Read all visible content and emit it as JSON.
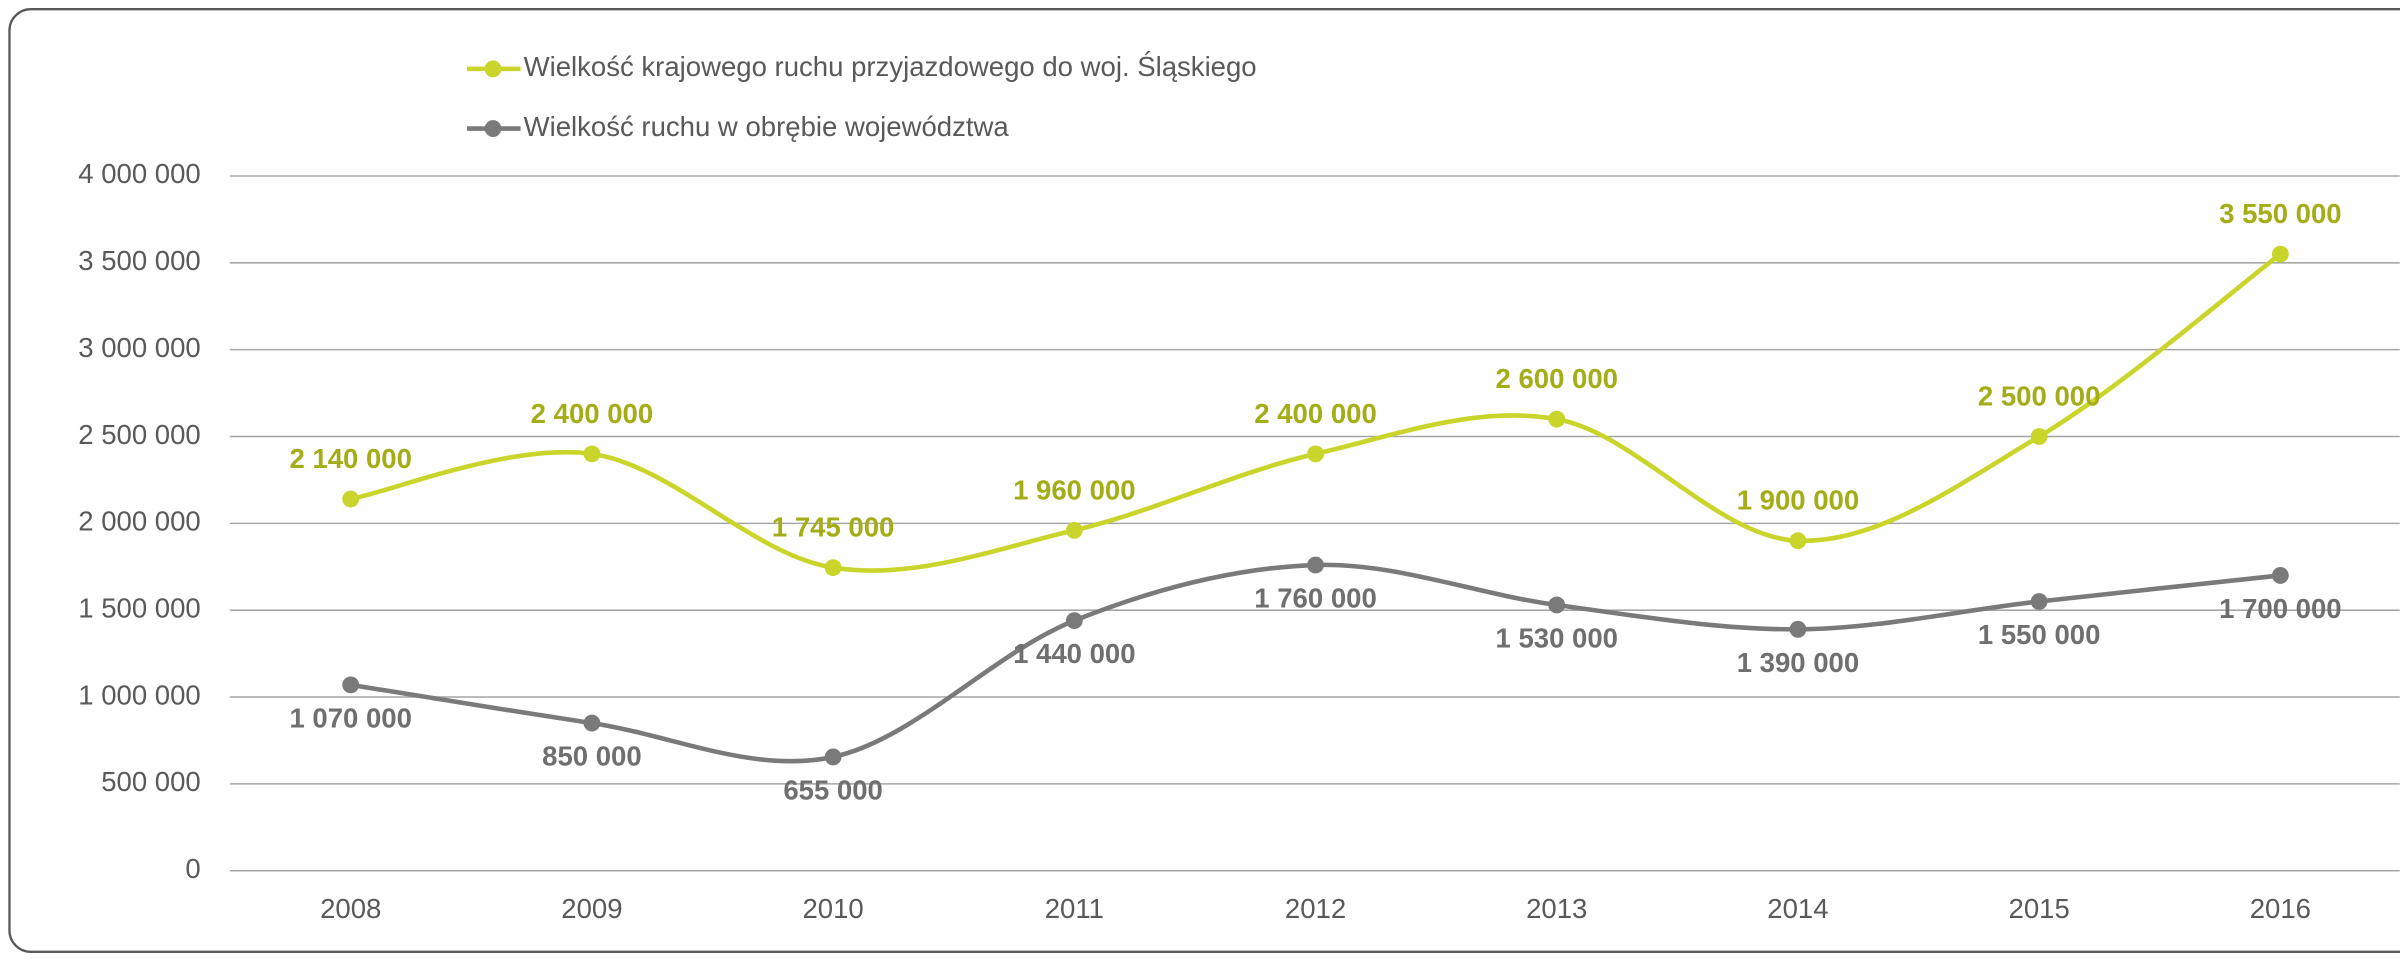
{
  "chart_data": {
    "type": "line",
    "categories": [
      "2008",
      "2009",
      "2010",
      "2011",
      "2012",
      "2013",
      "2014",
      "2015",
      "2016"
    ],
    "series": [
      {
        "name": "Wielkość krajowego ruchu przyjazdowego do woj. Śląskiego",
        "color": "#c9d52b",
        "label_color": "#a3ad16",
        "values": [
          2140000,
          2400000,
          1745000,
          1960000,
          2400000,
          2600000,
          1900000,
          2500000,
          3550000
        ],
        "value_labels": [
          "2 140 000",
          "2 400 000",
          "1 745 000",
          "1 960 000",
          "2 400 000",
          "2 600 000",
          "1 900 000",
          "2 500 000",
          "3 550 000"
        ]
      },
      {
        "name": "Wielkość ruchu w obrębie województwa",
        "color": "#7a7a7a",
        "label_color": "#6f6f6f",
        "values": [
          1070000,
          850000,
          655000,
          1440000,
          1760000,
          1530000,
          1390000,
          1550000,
          1700000
        ],
        "value_labels": [
          "1 070 000",
          "850 000",
          "655 000",
          "1 440 000",
          "1 760 000",
          "1 530 000",
          "1 390 000",
          "1 550 000",
          "1 700 000"
        ]
      }
    ],
    "ylim": [
      0,
      4000000
    ],
    "yticks": [
      0,
      {
        "value": 500000,
        "label": "500 000"
      },
      {
        "value": 1000000,
        "label": "1 000 000"
      },
      {
        "value": 1500000,
        "label": "1 500 000"
      },
      {
        "value": 2000000,
        "label": "2 000 000"
      },
      {
        "value": 2500000,
        "label": "2 500 000"
      },
      {
        "value": 3000000,
        "label": "3 000 000"
      },
      {
        "value": 3500000,
        "label": "3 500 000"
      },
      {
        "value": 4000000,
        "label": "4 000 000"
      }
    ],
    "grid": true,
    "smooth": true
  }
}
